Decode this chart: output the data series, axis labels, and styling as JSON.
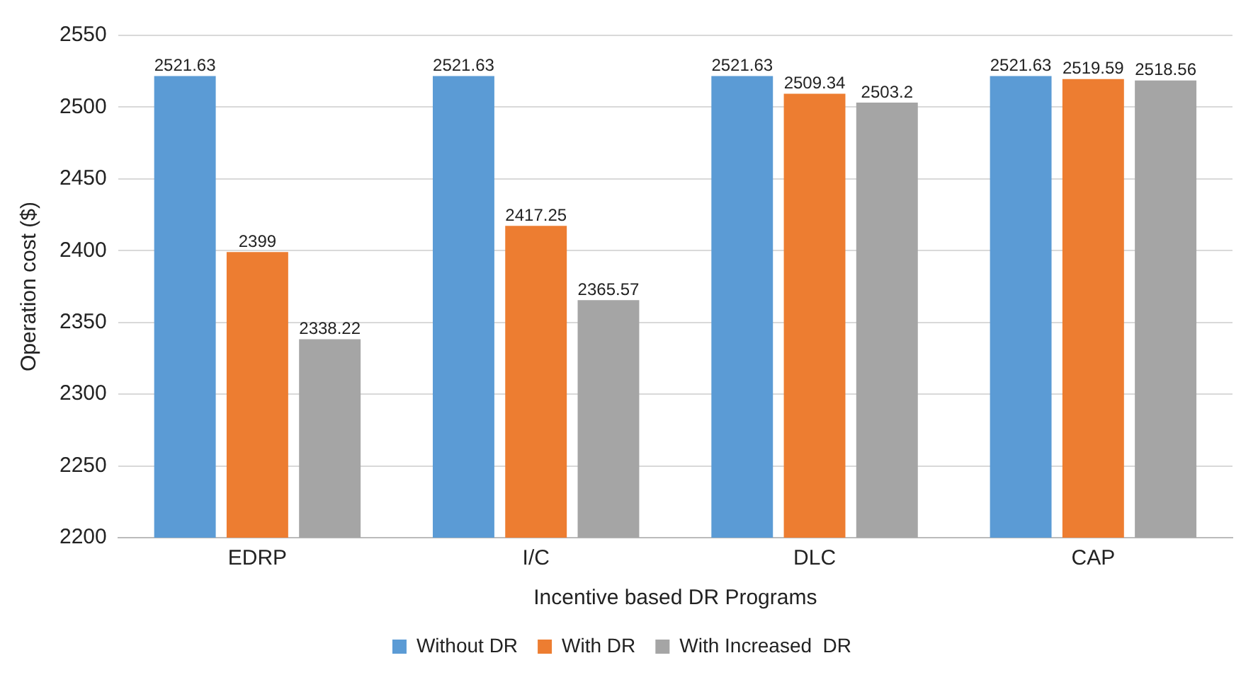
{
  "chart_data": {
    "type": "bar",
    "categories": [
      "EDRP",
      "I/C",
      "DLC",
      "CAP"
    ],
    "xlabel": "Incentive based DR Programs",
    "ylabel": "Operation cost ($)",
    "series": [
      {
        "name": "Without DR",
        "color": "#5b9bd5",
        "values": [
          2521.63,
          2521.63,
          2521.63,
          2521.63
        ]
      },
      {
        "name": "With DR",
        "color": "#ed7d31",
        "values": [
          2399,
          2417.25,
          2509.34,
          2519.59
        ]
      },
      {
        "name": "With Increased  DR",
        "color": "#a5a5a5",
        "values": [
          2338.22,
          2365.57,
          2503.2,
          2518.56
        ]
      }
    ],
    "ylim": [
      2200,
      2550
    ],
    "yticks": [
      2200,
      2250,
      2300,
      2350,
      2400,
      2450,
      2500,
      2550
    ],
    "grid": "y",
    "legend": "bottom",
    "data_labels": true
  }
}
